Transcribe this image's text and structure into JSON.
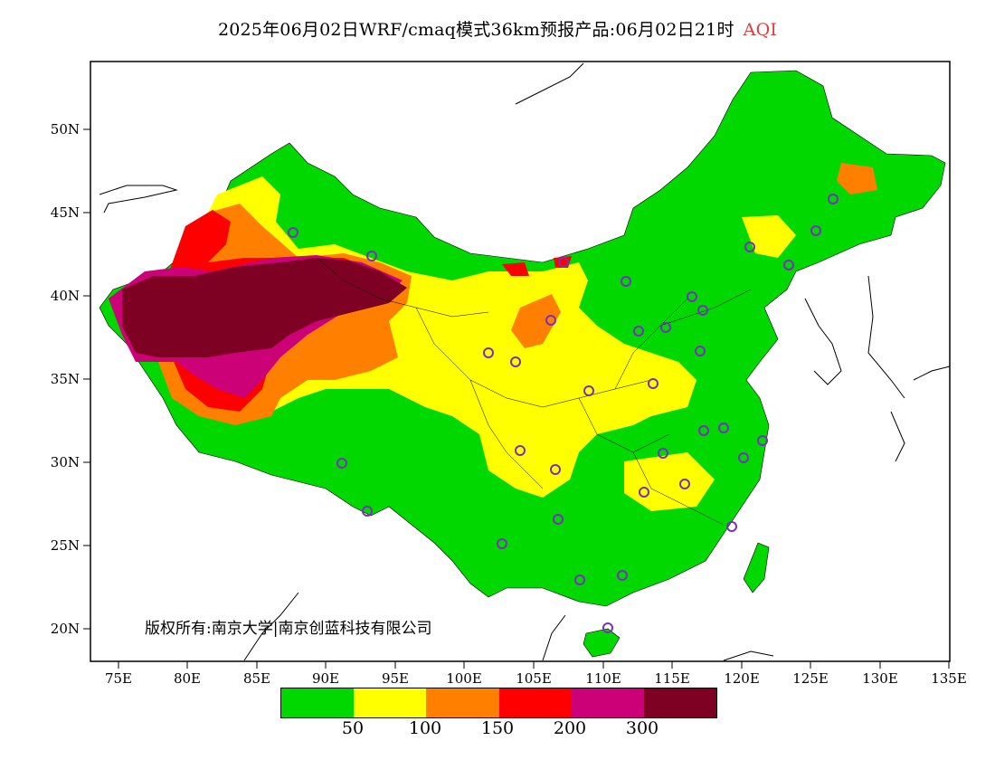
{
  "title": {
    "main": "2025年06月02日WRF/cmaq模式36km预报产品:06月02日21时",
    "tag": "AQI",
    "tag_color": "#e23b3b"
  },
  "axes": {
    "y_ticks": [
      "50N",
      "45N",
      "40N",
      "35N",
      "30N",
      "25N",
      "20N"
    ],
    "x_ticks": [
      "75E",
      "80E",
      "85E",
      "90E",
      "95E",
      "100E",
      "105E",
      "110E",
      "115E",
      "120E",
      "125E",
      "130E",
      "135E"
    ]
  },
  "copyright": "版权所有:南京大学|南京创蓝科技有限公司",
  "legend": {
    "colors": [
      "#00d800",
      "#ffff00",
      "#ff8000",
      "#ff0000",
      "#cc0077",
      "#7e0023"
    ],
    "labels": [
      "50",
      "100",
      "150",
      "200",
      "300"
    ]
  },
  "palette": {
    "good": "#00d800",
    "moderate": "#ffff00",
    "usg": "#ff8000",
    "unhealthy": "#ff0000",
    "very": "#cc0077",
    "hazard": "#7e0023",
    "station": "#7b2fbe"
  }
}
